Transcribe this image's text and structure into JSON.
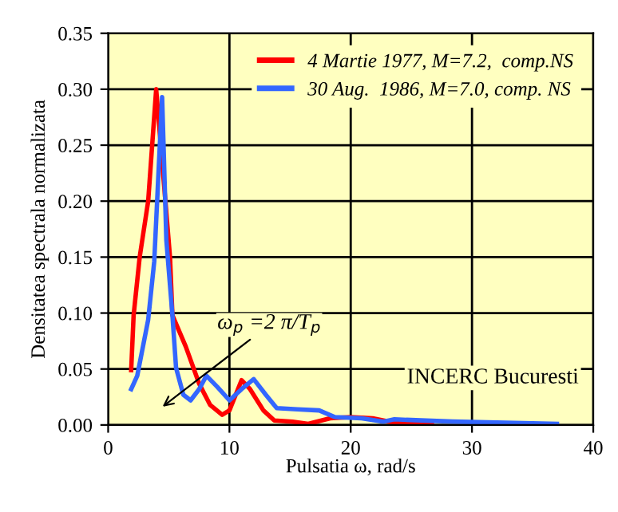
{
  "chart_data": {
    "type": "line",
    "xlabel": "Pulsatia ω, rad/s",
    "ylabel": "Densitatea spectrala normalizata",
    "xlim": [
      0,
      40
    ],
    "xticks": [
      0,
      10,
      20,
      30,
      40
    ],
    "ylim": [
      0,
      0.35
    ],
    "yticks": [
      {
        "value": 0,
        "label": "0.00"
      },
      0.05,
      {
        "value": 0.1,
        "label": "0.10"
      },
      0.15,
      {
        "value": 0.2,
        "label": "0.20"
      },
      0.25,
      {
        "value": 0.3,
        "label": "0.30"
      },
      0.35
    ],
    "grid": true,
    "legend": "top right",
    "line_style": "solid",
    "marker": "none",
    "series": [
      {
        "name": "4 Martie 1977, M=7.2,  comp.NS",
        "color": "#ff0000",
        "x": [
          1.9,
          2.1,
          2.6,
          3.3,
          3.96,
          5.1,
          5.3,
          6.4,
          7.5,
          8.4,
          9.4,
          10,
          11,
          11.7,
          12.8,
          13.7,
          15.2,
          16.5,
          18.3,
          20,
          21.8,
          23.6,
          26.7
        ],
        "values": [
          0.049,
          0.098,
          0.15,
          0.2,
          0.3,
          0.15,
          0.098,
          0.07,
          0.037,
          0.018,
          0.009,
          0.013,
          0.04,
          0.032,
          0.013,
          0.004,
          0.003,
          0.001,
          0.006,
          0.007,
          0.006,
          0.002,
          0.002
        ]
      },
      {
        "name": "30 Aug.  1986, M=7.0, comp. NS",
        "color": "#3366ff",
        "x": [
          1.9,
          2.4,
          3.3,
          3.8,
          4.45,
          4.8,
          5.3,
          5.6,
          6.2,
          6.8,
          7.5,
          8.1,
          9,
          10,
          11,
          12,
          13,
          13.9,
          15.6,
          17.4,
          18.7,
          20.9,
          22.7,
          23.6,
          28.4,
          37
        ],
        "values": [
          0.032,
          0.044,
          0.094,
          0.146,
          0.293,
          0.165,
          0.098,
          0.051,
          0.027,
          0.022,
          0.032,
          0.044,
          0.034,
          0.022,
          0.032,
          0.041,
          0.027,
          0.015,
          0.014,
          0.013,
          0.007,
          0.006,
          0.003,
          0.005,
          0.003,
          0.001
        ]
      }
    ],
    "annotations": [
      "ω$_{p}$ =2 π/T$_{p}$",
      "INCERC Bucuresti"
    ]
  }
}
